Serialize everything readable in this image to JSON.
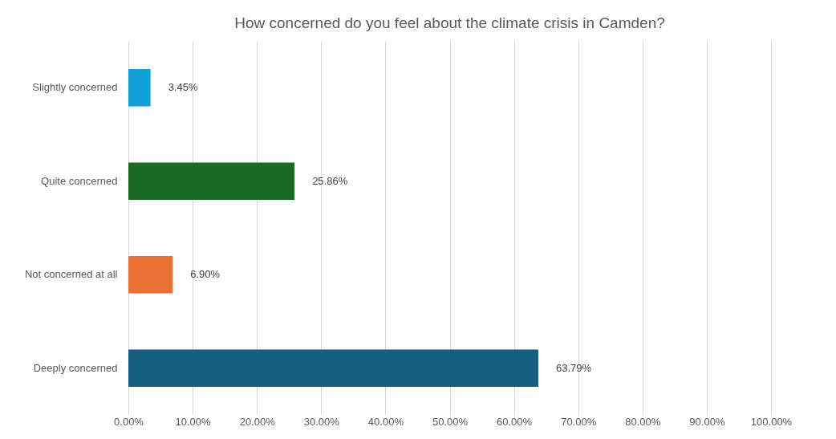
{
  "chart_data": {
    "type": "bar",
    "orientation": "horizontal",
    "title": "How concerned do you feel about the climate crisis in Camden?",
    "categories": [
      "Slightly concerned",
      "Quite concerned",
      "Not concerned at all",
      "Deeply concerned"
    ],
    "values": [
      3.45,
      25.86,
      6.9,
      63.79
    ],
    "colors": [
      "#119fd7",
      "#1a6b24",
      "#e97132",
      "#156082"
    ],
    "value_labels": [
      "3.45%",
      "25.86%",
      "6.90%",
      "63.79%"
    ],
    "xlim": [
      0,
      100
    ],
    "xticks": [
      {
        "value": 0,
        "label": "0.00%"
      },
      {
        "value": 10,
        "label": "10.00%"
      },
      {
        "value": 20,
        "label": "20.00%"
      },
      {
        "value": 30,
        "label": "30.00%"
      },
      {
        "value": 40,
        "label": "40.00%"
      },
      {
        "value": 50,
        "label": "50.00%"
      },
      {
        "value": 60,
        "label": "60.00%"
      },
      {
        "value": 70,
        "label": "70.00%"
      },
      {
        "value": 80,
        "label": "80.00%"
      },
      {
        "value": 90,
        "label": "90.00%"
      },
      {
        "value": 100,
        "label": "100.00%"
      }
    ],
    "grid": "x"
  }
}
